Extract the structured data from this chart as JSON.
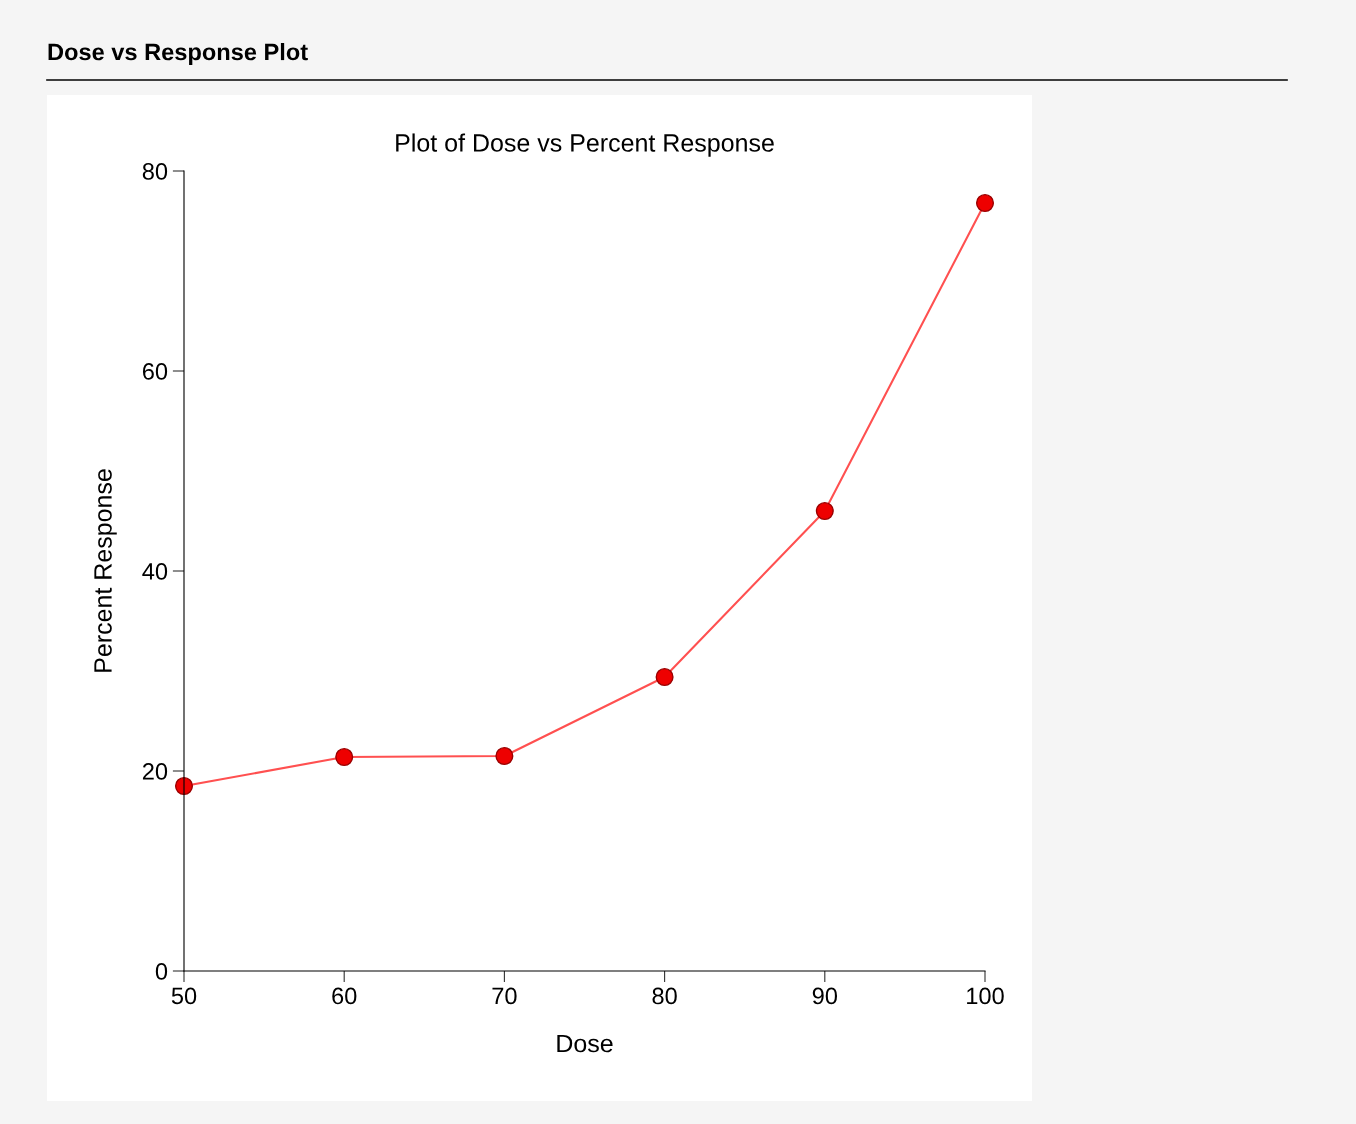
{
  "chart_data": {
    "type": "line",
    "title": "Dose vs Response Plot",
    "subtitle": "Plot of Dose vs Percent Response",
    "xlabel": "Dose",
    "ylabel": "Percent Response",
    "x": [
      50,
      60,
      70,
      80,
      90,
      100
    ],
    "series": [
      {
        "color": "#ff5050",
        "values": [
          18.5,
          21.4,
          21.5,
          29.4,
          46.0,
          76.8
        ]
      }
    ],
    "marker": "circle",
    "line_style": "solid",
    "grid": false,
    "legend": false,
    "xlim": [
      50,
      100
    ],
    "xticks": [
      50,
      60,
      70,
      80,
      90,
      100
    ],
    "ylim": [
      0,
      80
    ],
    "yticks": [
      0,
      20,
      40,
      60,
      80
    ]
  }
}
